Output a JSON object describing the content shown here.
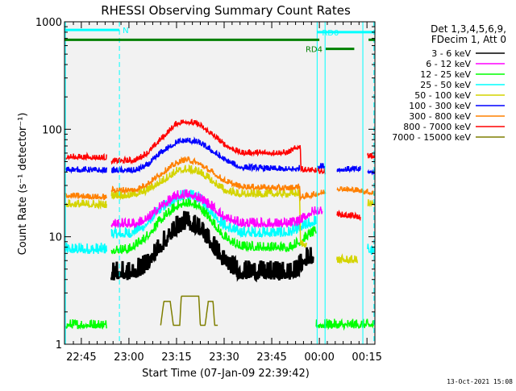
{
  "chart_data": {
    "type": "line",
    "title": "RHESSI Observing Summary Count Rates",
    "xlabel": "Start Time (07-Jan-09 22:39:42)",
    "ylabel": "Count Rate (s⁻¹ detector⁻¹)",
    "y_scale": "log",
    "ylim": [
      1,
      1000
    ],
    "xlim": [
      "22:39:42",
      "00:17:30"
    ],
    "x_units": "minutes after 22:00",
    "x_range_minutes": [
      39.7,
      137.5
    ],
    "y_ticks": [
      "1",
      "10",
      "100",
      "1000"
    ],
    "x_ticks": [
      {
        "label": "22:45",
        "minute": 45
      },
      {
        "label": "23:00",
        "minute": 60
      },
      {
        "label": "23:15",
        "minute": 75
      },
      {
        "label": "23:30",
        "minute": 90
      },
      {
        "label": "23:45",
        "minute": 105
      },
      {
        "label": "00:00",
        "minute": 120
      },
      {
        "label": "00:15",
        "minute": 135
      }
    ],
    "grid": false,
    "legend_position": "right",
    "legend_header": [
      "Det 1,3,4,5,6,9,",
      "FDecim 1, Att 0"
    ],
    "series": [
      {
        "name": "3 - 6 keV",
        "color": "#000000",
        "width": 3,
        "noise": 0.12,
        "segments": [
          [
            [
              54.5,
              4.5
            ],
            [
              61,
              4.5
            ],
            [
              65,
              5.2
            ],
            [
              70,
              8
            ],
            [
              75,
              12
            ],
            [
              78,
              13.5
            ],
            [
              82,
              12
            ],
            [
              86,
              8.5
            ],
            [
              90,
              5.8
            ],
            [
              95,
              4.6
            ],
            [
              112,
              4.5
            ],
            [
              113.8,
              5.2
            ],
            [
              116,
              6.2
            ],
            [
              118,
              6.5
            ]
          ]
        ]
      },
      {
        "name": "6 - 12 keV",
        "color": "#ff00ff",
        "width": 1.5,
        "noise": 0.06,
        "segments": [
          [
            [
              54.5,
              13
            ],
            [
              62,
              13
            ],
            [
              66,
              14.5
            ],
            [
              70,
              19
            ],
            [
              75,
              23.5
            ],
            [
              78,
              24.5
            ],
            [
              82,
              23
            ],
            [
              86,
              19
            ],
            [
              90,
              15
            ],
            [
              95,
              13.2
            ],
            [
              110,
              13
            ],
            [
              113.8,
              13.8
            ],
            [
              117,
              16.5
            ],
            [
              121,
              17.5
            ]
          ]
        ]
      },
      {
        "name": "12 - 25 keV",
        "color": "#00ff00",
        "width": 1.5,
        "noise": 0.06,
        "segments": [
          [
            [
              40,
              1.5
            ],
            [
              53,
              1.5
            ]
          ],
          [
            [
              54.5,
              7.5
            ],
            [
              60,
              7.5
            ],
            [
              65,
              9.5
            ],
            [
              70,
              14
            ],
            [
              75,
              19
            ],
            [
              78,
              20.5
            ],
            [
              82,
              19
            ],
            [
              86,
              14
            ],
            [
              90,
              9.8
            ],
            [
              95,
              8
            ],
            [
              110,
              7.8
            ],
            [
              113.8,
              8.8
            ],
            [
              117,
              10.5
            ],
            [
              119,
              11
            ]
          ],
          [
            [
              119,
              1.5
            ],
            [
              137.5,
              1.5
            ]
          ]
        ]
      },
      {
        "name": "25 - 50 keV",
        "color": "#00ffff",
        "width": 1.5,
        "noise": 0.07,
        "segments": [
          [
            [
              40,
              7.5
            ],
            [
              53,
              7.5
            ]
          ],
          [
            [
              54.5,
              10.5
            ],
            [
              60,
              10.5
            ],
            [
              65,
              12.5
            ],
            [
              70,
              18
            ],
            [
              75,
              22.5
            ],
            [
              78,
              24
            ],
            [
              82,
              22.5
            ],
            [
              86,
              17
            ],
            [
              90,
              12.5
            ],
            [
              95,
              10.8
            ],
            [
              110,
              10.7
            ],
            [
              113.8,
              11.8
            ],
            [
              117,
              13
            ],
            [
              119,
              14
            ]
          ],
          [
            [
              135.2,
              7.5
            ],
            [
              137.5,
              7
            ]
          ]
        ]
      },
      {
        "name": "50 - 100 keV",
        "color": "#d4d400",
        "width": 1.5,
        "noise": 0.05,
        "segments": [
          [
            [
              40,
              20
            ],
            [
              53,
              19.5
            ]
          ],
          [
            [
              54.5,
              24
            ],
            [
              60,
              24
            ],
            [
              65,
              26
            ],
            [
              70,
              32
            ],
            [
              75,
              40
            ],
            [
              78,
              42
            ],
            [
              82,
              40
            ],
            [
              86,
              33
            ],
            [
              90,
              27
            ],
            [
              95,
              24.5
            ],
            [
              113.8,
              25
            ],
            [
              114,
              8.5
            ],
            [
              116,
              8.5
            ]
          ],
          [
            [
              125.5,
              6
            ],
            [
              132,
              6
            ]
          ],
          [
            [
              135.2,
              20
            ],
            [
              137.5,
              20
            ]
          ]
        ]
      },
      {
        "name": "100 - 300 keV",
        "color": "#0000ff",
        "width": 1.5,
        "noise": 0.035,
        "segments": [
          [
            [
              40,
              42
            ],
            [
              53,
              41
            ]
          ],
          [
            [
              54.5,
              41
            ],
            [
              62,
              41
            ],
            [
              66,
              46
            ],
            [
              70,
              60
            ],
            [
              75,
              75
            ],
            [
              78,
              78
            ],
            [
              82,
              75
            ],
            [
              86,
              63
            ],
            [
              90,
              52
            ],
            [
              95,
              44
            ],
            [
              110,
              42
            ],
            [
              113.8,
              43
            ]
          ],
          [
            [
              119.5,
              45
            ],
            [
              121.8,
              45
            ]
          ],
          [
            [
              125.5,
              42
            ],
            [
              133,
              42
            ]
          ],
          [
            [
              135.2,
              40
            ],
            [
              137.5,
              40
            ]
          ]
        ]
      },
      {
        "name": "300 - 800 keV",
        "color": "#ff8000",
        "width": 1.5,
        "noise": 0.035,
        "segments": [
          [
            [
              40,
              24
            ],
            [
              53,
              23
            ]
          ],
          [
            [
              54.5,
              27
            ],
            [
              62,
              27
            ],
            [
              66,
              31
            ],
            [
              70,
              38
            ],
            [
              75,
              48
            ],
            [
              78,
              52
            ],
            [
              82,
              48
            ],
            [
              86,
              40
            ],
            [
              90,
              33
            ],
            [
              95,
              29
            ],
            [
              110,
              28
            ],
            [
              113.8,
              29
            ],
            [
              114,
              23
            ],
            [
              117,
              24
            ],
            [
              122,
              26
            ]
          ],
          [
            [
              125.5,
              28
            ],
            [
              131,
              27
            ],
            [
              135,
              26
            ],
            [
              137.5,
              25
            ]
          ]
        ]
      },
      {
        "name": "800 - 7000 keV",
        "color": "#ff0000",
        "width": 1.5,
        "noise": 0.035,
        "segments": [
          [
            [
              40,
              55
            ],
            [
              53,
              54
            ]
          ],
          [
            [
              54.5,
              50
            ],
            [
              62,
              51
            ],
            [
              66,
              60
            ],
            [
              70,
              80
            ],
            [
              75,
              112
            ],
            [
              78,
              118
            ],
            [
              82,
              110
            ],
            [
              86,
              90
            ],
            [
              90,
              72
            ],
            [
              95,
              60
            ],
            [
              110,
              60
            ],
            [
              114,
              70
            ],
            [
              114.2,
              42
            ],
            [
              118,
              41
            ],
            [
              122,
              40
            ]
          ],
          [
            [
              125.5,
              16
            ],
            [
              130,
              15.5
            ],
            [
              133,
              15
            ]
          ],
          [
            [
              135.2,
              56
            ],
            [
              137.5,
              55
            ]
          ]
        ]
      },
      {
        "name": "7000 - 15000 keV",
        "color": "#7f7f00",
        "width": 1.5,
        "noise": 0,
        "segments": [
          [
            [
              70,
              1.5
            ],
            [
              71,
              2.5
            ],
            [
              73,
              2.5
            ],
            [
              74,
              1.5
            ],
            [
              76,
              1.5
            ],
            [
              76.5,
              2.8
            ],
            [
              82,
              2.8
            ],
            [
              82.5,
              1.5
            ],
            [
              84,
              1.5
            ],
            [
              85,
              2.5
            ],
            [
              86.5,
              2.5
            ],
            [
              87,
              1.5
            ],
            [
              88,
              1.5
            ]
          ]
        ]
      }
    ],
    "annotations": [
      {
        "label": "N",
        "minute_from": 39.7,
        "minute_to": 57,
        "y": 840,
        "color": "#00ffff"
      },
      {
        "label": "RD0",
        "minute_from": 119.3,
        "minute_to": 137.5,
        "y": 800,
        "color": "#00ffff"
      },
      {
        "label": "",
        "minute_from": 39.7,
        "minute_to": 120,
        "y": 680,
        "color": "#008000"
      },
      {
        "label": "RD4",
        "minute_from": 122,
        "minute_to": 131,
        "y": 560,
        "color": "#008000"
      },
      {
        "label": "",
        "minute_from": 135.5,
        "minute_to": 137.5,
        "y": 680,
        "color": "#008000"
      }
    ],
    "vertical_markers": [
      {
        "minute": 119.3,
        "color": "#00ffff",
        "style": "solid"
      },
      {
        "minute": 121.8,
        "color": "#00ffff",
        "style": "solid"
      },
      {
        "minute": 133.7,
        "color": "#00ffff",
        "style": "solid"
      },
      {
        "minute": 57,
        "color": "#00ffff",
        "style": "dashed"
      },
      {
        "minute": 137.2,
        "color": "#00ffff",
        "style": "dashed"
      },
      {
        "minute": 40,
        "color": "#00ffff",
        "style": "solid"
      }
    ]
  },
  "footer": {
    "timestamp": "13-Oct-2021 15:08"
  }
}
